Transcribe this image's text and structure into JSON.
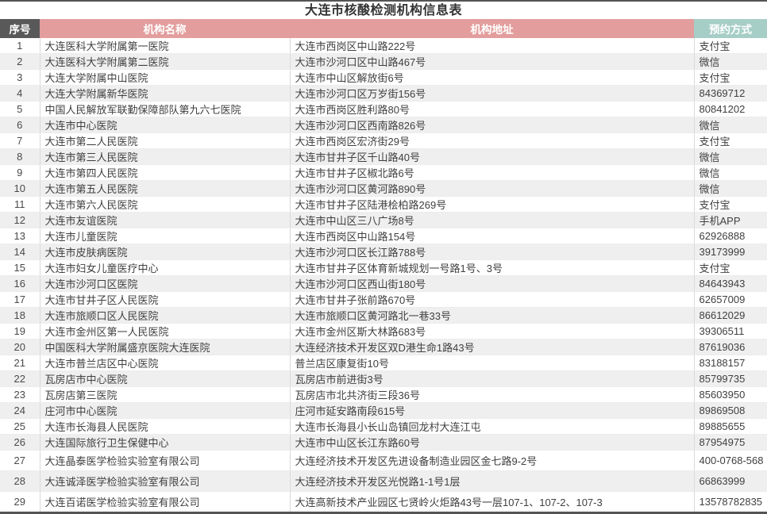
{
  "title": "大连市核酸检测机构信息表",
  "colors": {
    "header_dark": "#595959",
    "header_pink": "#e39d9d",
    "header_teal": "#a6cec7",
    "zebra": "#efefef",
    "rule_color": "#545454"
  },
  "table": {
    "columns": [
      {
        "label": "序号"
      },
      {
        "label": "机构名称"
      },
      {
        "label": "机构地址"
      },
      {
        "label": "预约方式"
      }
    ],
    "rows": [
      {
        "no": "1",
        "name": "大连医科大学附属第一医院",
        "address": "大连市西岗区中山路222号",
        "booking": "支付宝"
      },
      {
        "no": "2",
        "name": "大连医科大学附属第二医院",
        "address": "大连市沙河口区中山路467号",
        "booking": "微信"
      },
      {
        "no": "3",
        "name": "大连大学附属中山医院",
        "address": "大连市中山区解放街6号",
        "booking": "支付宝"
      },
      {
        "no": "4",
        "name": "大连大学附属新华医院",
        "address": "大连市沙河口区万岁街156号",
        "booking": "84369712"
      },
      {
        "no": "5",
        "name": "中国人民解放军联勤保障部队第九六七医院",
        "address": "大连市西岗区胜利路80号",
        "booking": "80841202"
      },
      {
        "no": "6",
        "name": "大连市中心医院",
        "address": "大连市沙河口区西南路826号",
        "booking": "微信"
      },
      {
        "no": "7",
        "name": "大连市第二人民医院",
        "address": "大连市西岗区宏济街29号",
        "booking": "支付宝"
      },
      {
        "no": "8",
        "name": "大连市第三人民医院",
        "address": "大连市甘井子区千山路40号",
        "booking": "微信"
      },
      {
        "no": "9",
        "name": "大连市第四人民医院",
        "address": "大连市甘井子区椒北路6号",
        "booking": "微信"
      },
      {
        "no": "10",
        "name": "大连市第五人民医院",
        "address": "大连市沙河口区黄河路890号",
        "booking": "微信"
      },
      {
        "no": "11",
        "name": "大连市第六人民医院",
        "address": "大连市甘井子区陆港桧柏路269号",
        "booking": "支付宝"
      },
      {
        "no": "12",
        "name": "大连市友谊医院",
        "address": "大连市中山区三八广场8号",
        "booking": "手机APP"
      },
      {
        "no": "13",
        "name": "大连市儿童医院",
        "address": "大连市西岗区中山路154号",
        "booking": "62926888"
      },
      {
        "no": "14",
        "name": "大连市皮肤病医院",
        "address": "大连市沙河口区长江路788号",
        "booking": "39173999"
      },
      {
        "no": "15",
        "name": "大连市妇女儿童医疗中心",
        "address": "大连市甘井子区体育新城规划一号路1号、3号",
        "booking": "支付宝"
      },
      {
        "no": "16",
        "name": "大连市沙河口区医院",
        "address": "大连市沙河口区西山街180号",
        "booking": "84643943"
      },
      {
        "no": "17",
        "name": "大连市甘井子区人民医院",
        "address": "大连市甘井子张前路670号",
        "booking": "62657009"
      },
      {
        "no": "18",
        "name": "大连市旅顺口区人民医院",
        "address": "大连市旅顺口区黄河路北一巷33号",
        "booking": "86612029"
      },
      {
        "no": "19",
        "name": "大连市金州区第一人民医院",
        "address": "大连市金州区斯大林路683号",
        "booking": "39306511"
      },
      {
        "no": "20",
        "name": "中国医科大学附属盛京医院大连医院",
        "address": "大连经济技术开发区双D港生命1路43号",
        "booking": "87619036"
      },
      {
        "no": "21",
        "name": "大连市普兰店区中心医院",
        "address": "普兰店区康复街10号",
        "booking": "83188157"
      },
      {
        "no": "22",
        "name": "瓦房店市中心医院",
        "address": "瓦房店市前进街3号",
        "booking": "85799735"
      },
      {
        "no": "23",
        "name": "瓦房店第三医院",
        "address": "瓦房店市北共济街三段36号",
        "booking": "85603950"
      },
      {
        "no": "24",
        "name": "庄河市中心医院",
        "address": "庄河市延安路南段615号",
        "booking": "89869508"
      },
      {
        "no": "25",
        "name": "大连市长海县人民医院",
        "address": "大连市长海县小长山岛镇回龙村大连江屯",
        "booking": "89885655"
      },
      {
        "no": "26",
        "name": "大连国际旅行卫生保健中心",
        "address": "大连市中山区长江东路60号",
        "booking": "87954975"
      },
      {
        "no": "27",
        "name": "大连晶泰医学检验实验室有限公司",
        "address": "大连经济技术开发区先进设备制造业园区金七路9-2号",
        "booking": "400-0768-568",
        "tall": true
      },
      {
        "no": "28",
        "name": "大连诚泽医学检验实验室有限公司",
        "address": "大连经济技术开发区光悦路1-1号1层",
        "booking": "66863999",
        "tall": true
      },
      {
        "no": "29",
        "name": "大连百诺医学检验实验室有限公司",
        "address": "大连高新技术产业园区七贤岭火炬路43号一层107-1、107-2、107-3",
        "booking": "13578782835",
        "tall": true
      }
    ]
  }
}
